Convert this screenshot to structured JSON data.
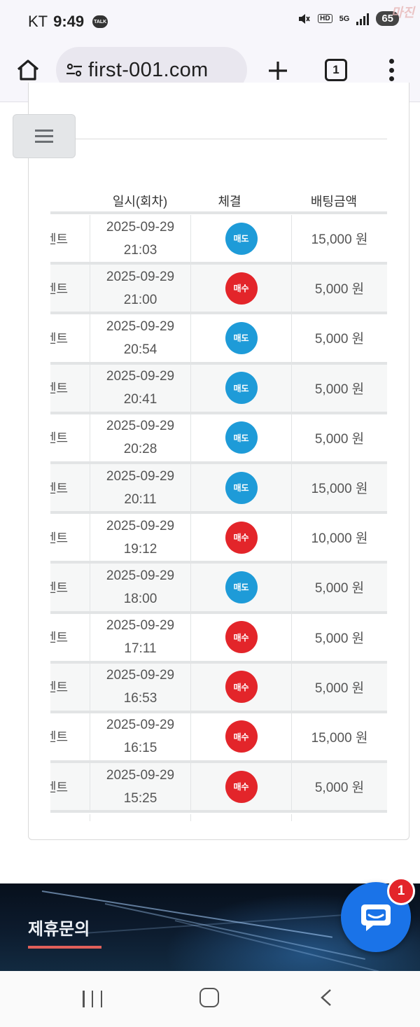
{
  "status_bar": {
    "carrier": "KT",
    "time": "9:49",
    "talk_label": "TALK",
    "network": "5G",
    "hd_label": "HD",
    "battery": "65",
    "watermark": "마진"
  },
  "browser": {
    "url": "first-001.com",
    "tab_count": "1"
  },
  "table": {
    "headers": [
      "일시(회차)",
      "체결",
      "배팅금액"
    ],
    "rows": [
      {
        "stub": "벤트",
        "date": "2025-09-29",
        "time": "21:03",
        "side": "매도",
        "amount": "15,000 원"
      },
      {
        "stub": "벤트",
        "date": "2025-09-29",
        "time": "21:00",
        "side": "매수",
        "amount": "5,000 원"
      },
      {
        "stub": "벤트",
        "date": "2025-09-29",
        "time": "20:54",
        "side": "매도",
        "amount": "5,000 원"
      },
      {
        "stub": "벤트",
        "date": "2025-09-29",
        "time": "20:41",
        "side": "매도",
        "amount": "5,000 원"
      },
      {
        "stub": "벤트",
        "date": "2025-09-29",
        "time": "20:28",
        "side": "매도",
        "amount": "5,000 원"
      },
      {
        "stub": "벤트",
        "date": "2025-09-29",
        "time": "20:11",
        "side": "매도",
        "amount": "15,000 원"
      },
      {
        "stub": "벤트",
        "date": "2025-09-29",
        "time": "19:12",
        "side": "매수",
        "amount": "10,000 원"
      },
      {
        "stub": "벤트",
        "date": "2025-09-29",
        "time": "18:00",
        "side": "매도",
        "amount": "5,000 원"
      },
      {
        "stub": "벤트",
        "date": "2025-09-29",
        "time": "17:11",
        "side": "매수",
        "amount": "5,000 원"
      },
      {
        "stub": "벤트",
        "date": "2025-09-29",
        "time": "16:53",
        "side": "매수",
        "amount": "5,000 원"
      },
      {
        "stub": "벤트",
        "date": "2025-09-29",
        "time": "16:15",
        "side": "매수",
        "amount": "15,000 원"
      },
      {
        "stub": "벤트",
        "date": "2025-09-29",
        "time": "15:25",
        "side": "매수",
        "amount": "5,000 원"
      }
    ]
  },
  "colors": {
    "sell": "#1e9bd8",
    "buy": "#e3252a",
    "accent_underline": "#e0605a",
    "chat_button": "#1a73e8"
  },
  "footer": {
    "title": "제휴문의",
    "chat_badge": "1"
  },
  "icons": {
    "browser": [
      "home-icon",
      "site-settings-icon",
      "plus-icon",
      "tabs-icon",
      "more-vert-icon"
    ],
    "page": [
      "hamburger-menu-icon",
      "chat-bubble-icon"
    ],
    "nav": [
      "recent-apps-icon",
      "home-nav-icon",
      "back-icon"
    ]
  }
}
